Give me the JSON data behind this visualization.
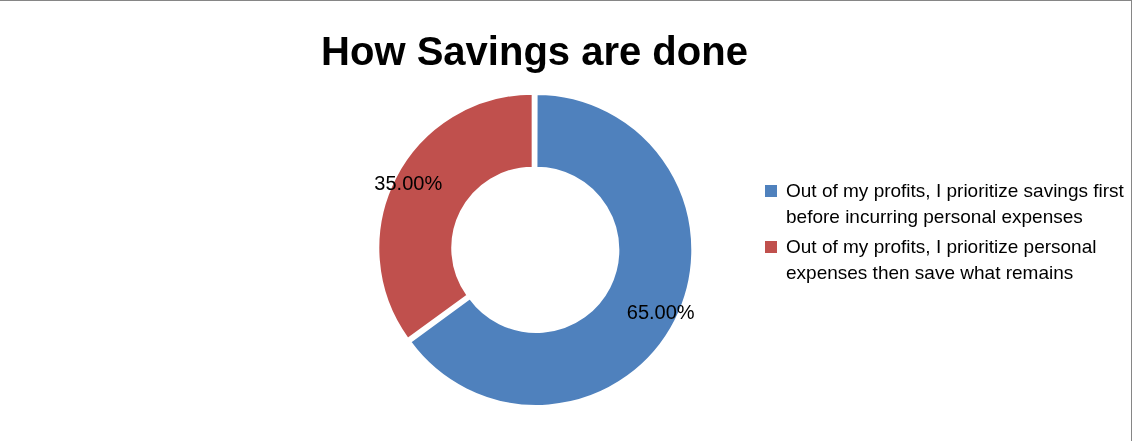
{
  "chart_data": {
    "type": "donut",
    "title": "How Savings are done",
    "categories": [
      "Out of my profits, I prioritize savings first before incurring personal expenses",
      "Out of my profits, I prioritize personal expenses then save what remains"
    ],
    "values": [
      65,
      35
    ],
    "colors": [
      "#4f81bd",
      "#c0504d"
    ],
    "value_labels": [
      "65.00%",
      "35.00%"
    ],
    "legend": "right"
  }
}
